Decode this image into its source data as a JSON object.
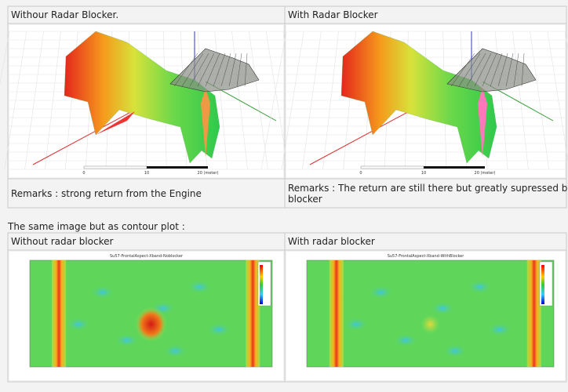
{
  "table1": {
    "headers": [
      "Withour Radar Blocker.",
      "With Radar Blocker"
    ],
    "remarks": [
      "Remarks : strong return from the Engine",
      "Remarks : The return are still there but greatly supressed by the radar blocker"
    ],
    "scale_labels": [
      "0",
      "10",
      "20 (meter)"
    ]
  },
  "caption": "The same image but as contour plot :",
  "table2": {
    "headers": [
      "Without radar blocker",
      "With radar blocker"
    ],
    "plot_titles": [
      "Su57-FrontalAspect-Xband-Noblocker",
      "Su57-FrontalAspect-Xband-WithBlocker"
    ]
  }
}
